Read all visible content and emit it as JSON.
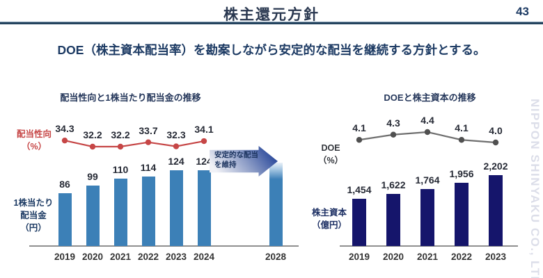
{
  "header": {
    "title": "株主還元方針",
    "page_number": "43"
  },
  "subtitle": "DOE（株主資本配当率）を勘案しながら安定的な配当を継続する方針とする。",
  "watermark": "NIPPON SHINYAKU CO., LTD",
  "colors": {
    "navy_text": "#1c3a63",
    "header_rule": "#24435e",
    "left_bar": "#3c80b7",
    "right_bar": "#15156b",
    "payout_line": "#c64646",
    "doe_line": "#6f6f6f",
    "doe_marker": "#505050",
    "baseline": "#8f8f8f",
    "watermark": "#dcdee9"
  },
  "chart_data": [
    {
      "id": "left",
      "type": "bar+line",
      "title": "配当性向と1株当たり配当金の推移",
      "categories": [
        "2019",
        "2020",
        "2021",
        "2022",
        "2023",
        "2024"
      ],
      "bar_series": {
        "name": "1株当たり配当金（円）",
        "values": [
          86,
          99,
          110,
          114,
          124,
          124
        ],
        "labels": [
          "86",
          "99",
          "110",
          "114",
          "124",
          "124"
        ],
        "color": "#3c80b7"
      },
      "line_series": {
        "name": "配当性向（%）",
        "values": [
          34.3,
          32.2,
          32.2,
          33.7,
          32.3,
          34.1
        ],
        "labels": [
          "34.3",
          "32.2",
          "32.2",
          "33.7",
          "32.3",
          "34.1"
        ],
        "color": "#c64646",
        "marker_color": "#c64646"
      },
      "y_axis_line_label": "配当性向\n（%）",
      "y_axis_bar_label": "1株当たり\n配当金\n（円）",
      "future_bar": {
        "category": "2028",
        "annotation": "安定的な配当\nを維持"
      },
      "xlabel": "",
      "grid": false,
      "legend_position": "none"
    },
    {
      "id": "right",
      "type": "bar+line",
      "title": "DOEと株主資本の推移",
      "categories": [
        "2019",
        "2020",
        "2021",
        "2022",
        "2023"
      ],
      "bar_series": {
        "name": "株主資本（億円）",
        "values": [
          1454,
          1622,
          1764,
          1956,
          2202
        ],
        "labels": [
          "1,454",
          "1,622",
          "1,764",
          "1,956",
          "2,202"
        ],
        "color": "#15156b"
      },
      "line_series": {
        "name": "DOE（%）",
        "values": [
          4.1,
          4.3,
          4.4,
          4.1,
          4.0
        ],
        "labels": [
          "4.1",
          "4.3",
          "4.4",
          "4.1",
          "4.0"
        ],
        "color": "#6f6f6f",
        "marker_color": "#505050"
      },
      "y_axis_line_label": "DOE\n（%）",
      "y_axis_bar_label": "株主資本\n（億円）",
      "xlabel": "",
      "grid": false,
      "legend_position": "none"
    }
  ]
}
